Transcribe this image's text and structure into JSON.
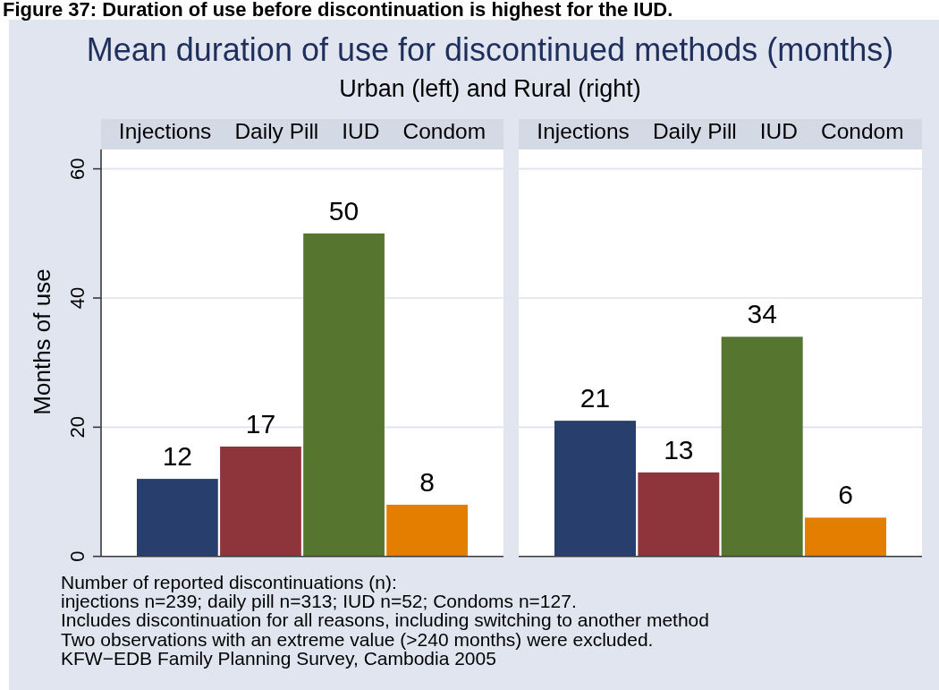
{
  "chart_data": [
    {
      "type": "bar",
      "title": "Mean duration of use for discontinued methods (months)",
      "subtitle": "Urban (left) and Rural (right)",
      "ylabel": "Months of use",
      "categories": [
        "Injections",
        "Daily Pill",
        "IUD",
        "Condom"
      ],
      "values": [
        12,
        17,
        50,
        8
      ],
      "colors": [
        "#283f6d",
        "#8e353c",
        "#56752f",
        "#e37e00"
      ],
      "ylim": [
        0,
        63
      ],
      "yticks": [
        0,
        20,
        40,
        60
      ],
      "grid": "y",
      "data_labels": true,
      "annotations": [
        "Figure 37: Duration of use before discontinuation is highest for the IUD.",
        "Number of reported discontinuations (n):",
        "injections n=239; daily pill n=313; IUD n=52; Condoms n=127.",
        "Includes discontinuation for all reasons, including switching to another method",
        "Two observations with an extreme value (>240 months) were excluded.",
        "KFW−EDB Family Planning Survey, Cambodia 2005"
      ]
    },
    {
      "type": "bar",
      "categories": [
        "Injections",
        "Daily Pill",
        "IUD",
        "Condom"
      ],
      "values": [
        21,
        13,
        34,
        6
      ],
      "colors": [
        "#283f6d",
        "#8e353c",
        "#56752f",
        "#e37e00"
      ],
      "ylim": [
        0,
        63
      ],
      "yticks": [
        0,
        20,
        40,
        60
      ],
      "grid": "y",
      "data_labels": true,
      "tick_labels": "x"
    }
  ]
}
